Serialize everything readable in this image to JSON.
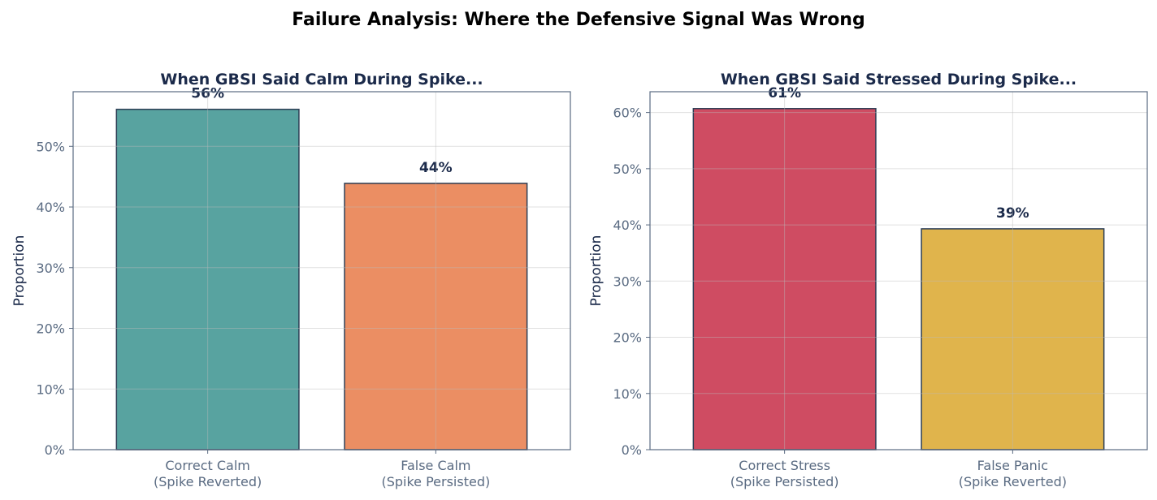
{
  "title": "Failure Analysis: Where the Defensive Signal Was Wrong",
  "chart_data": [
    {
      "type": "bar",
      "title": "When GBSI Said Calm During Spike...",
      "xlabel": "",
      "ylabel": "Proportion",
      "categories": [
        "Correct Calm\n(Spike Reverted)",
        "False Calm\n(Spike Persisted)"
      ],
      "values": [
        0.561,
        0.439
      ],
      "data_labels": [
        "56%",
        "44%"
      ],
      "colors": [
        "#58a3a0",
        "#eb8e63"
      ],
      "ylim": [
        0,
        0.59
      ],
      "yticks": [
        0,
        0.1,
        0.2,
        0.3,
        0.4,
        0.5
      ],
      "ytick_labels": [
        "0%",
        "10%",
        "20%",
        "30%",
        "40%",
        "50%"
      ],
      "grid": true
    },
    {
      "type": "bar",
      "title": "When GBSI Said Stressed During Spike...",
      "xlabel": "",
      "ylabel": "Proportion",
      "categories": [
        "Correct Stress\n(Spike Persisted)",
        "False Panic\n(Spike Reverted)"
      ],
      "values": [
        0.607,
        0.393
      ],
      "data_labels": [
        "61%",
        "39%"
      ],
      "colors": [
        "#cf4c62",
        "#e0b44c"
      ],
      "ylim": [
        0,
        0.637
      ],
      "yticks": [
        0,
        0.1,
        0.2,
        0.3,
        0.4,
        0.5,
        0.6
      ],
      "ytick_labels": [
        "0%",
        "10%",
        "20%",
        "30%",
        "40%",
        "50%",
        "60%"
      ],
      "grid": true
    }
  ]
}
